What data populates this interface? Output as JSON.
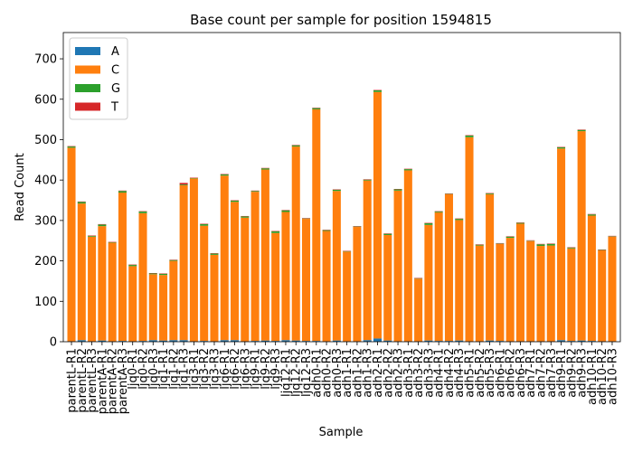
{
  "chart_data": {
    "type": "bar",
    "stacked": true,
    "title": "Base count per sample for position 1594815",
    "xlabel": "Sample",
    "ylabel": "Read Count",
    "ylim": [
      0,
      765
    ],
    "yticks": [
      0,
      100,
      200,
      300,
      400,
      500,
      600,
      700
    ],
    "grid": false,
    "legend_position": "top-left",
    "categories": [
      "parentL-R1",
      "parentL-R2",
      "parentL-R3",
      "parentA-R1",
      "parentA-R2",
      "parentA-R3",
      "ljq0-R1",
      "ljq0-R2",
      "ljq0-R3",
      "ljq1-R1",
      "ljq1-R2",
      "ljq1-R3",
      "ljq3-R1",
      "ljq3-R2",
      "ljq3-R3",
      "ljq6-R1",
      "ljq6-R2",
      "ljq6-R3",
      "ljq9-R1",
      "ljq9-R2",
      "ljq9-R3",
      "ljq12-R1",
      "ljq12-R2",
      "ljq12-R3",
      "adh0-R1",
      "adh0-R2",
      "adh0-R3",
      "adh1-R1",
      "adh1-R2",
      "adh1-R3",
      "adh2-R1",
      "adh2-R2",
      "adh2-R3",
      "adh3-R1",
      "adh3-R2",
      "adh3-R3",
      "adh4-R1",
      "adh4-R2",
      "adh4-R3",
      "adh5-R1",
      "adh5-R2",
      "adh5-R3",
      "adh6-R1",
      "adh6-R2",
      "adh6-R3",
      "adh7-R1",
      "adh7-R2",
      "adh7-R3",
      "adh9-R1",
      "adh9-R2",
      "adh9-R3",
      "adh10-R1",
      "adh10-R2",
      "adh10-R3"
    ],
    "series": [
      {
        "name": "A",
        "color": "#1f77b4",
        "values": [
          1,
          4,
          1,
          3,
          1,
          2,
          1,
          2,
          4,
          3,
          4,
          4,
          1,
          2,
          1,
          4,
          4,
          1,
          2,
          3,
          2,
          4,
          3,
          2,
          2,
          1,
          3,
          1,
          1,
          4,
          8,
          3,
          1,
          1,
          1,
          3,
          2,
          2,
          3,
          1,
          1,
          3,
          2,
          1,
          1,
          1,
          1,
          1,
          4,
          2,
          3,
          2,
          1,
          1
        ]
      },
      {
        "name": "C",
        "color": "#ff7f0e",
        "values": [
          479,
          338,
          259,
          283,
          244,
          367,
          186,
          316,
          163,
          162,
          196,
          383,
          403,
          285,
          214,
          407,
          342,
          306,
          369,
          423,
          267,
          317,
          480,
          302,
          573,
          273,
          370,
          222,
          283,
          395,
          610,
          261,
          373,
          423,
          155,
          286,
          318,
          363,
          298,
          505,
          237,
          362,
          240,
          256,
          291,
          248,
          236,
          237,
          474,
          229,
          518,
          310,
          225,
          259
        ]
      },
      {
        "name": "G",
        "color": "#2ca02c",
        "values": [
          3,
          4,
          2,
          4,
          1,
          4,
          3,
          4,
          2,
          3,
          2,
          2,
          1,
          4,
          3,
          3,
          3,
          3,
          2,
          3,
          4,
          4,
          3,
          1,
          3,
          2,
          3,
          1,
          1,
          2,
          4,
          3,
          3,
          3,
          1,
          4,
          2,
          1,
          3,
          4,
          2,
          2,
          1,
          3,
          2,
          1,
          4,
          4,
          3,
          2,
          3,
          3,
          1,
          1
        ]
      },
      {
        "name": "T",
        "color": "#d62728",
        "values": [
          1,
          1,
          1,
          1,
          1,
          1,
          1,
          1,
          1,
          1,
          1,
          4,
          1,
          1,
          1,
          1,
          1,
          1,
          1,
          1,
          1,
          1,
          1,
          1,
          1,
          1,
          1,
          1,
          1,
          1,
          1,
          1,
          1,
          1,
          1,
          1,
          1,
          1,
          1,
          1,
          1,
          1,
          1,
          1,
          1,
          1,
          1,
          1,
          1,
          1,
          1,
          1,
          1,
          1
        ]
      }
    ]
  }
}
